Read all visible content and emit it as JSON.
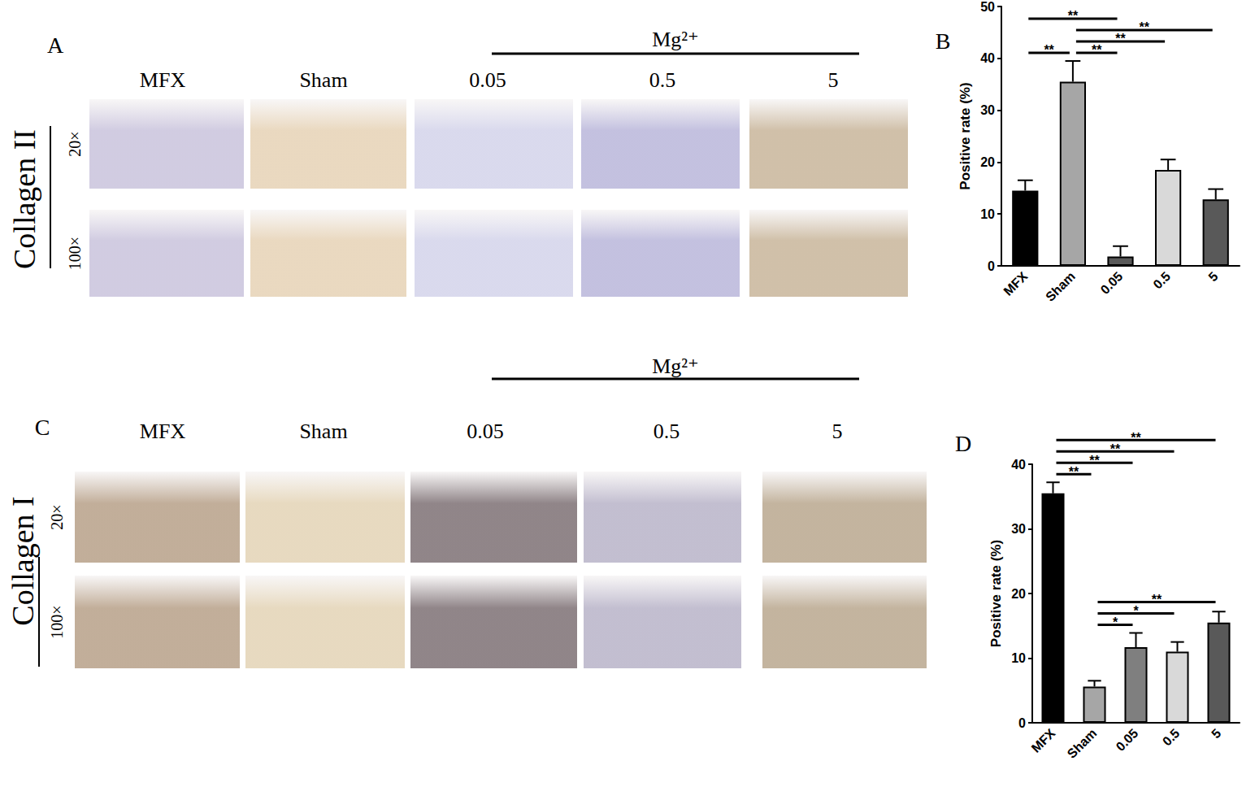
{
  "figure": {
    "panels": [
      {
        "panel": "A",
        "stain": "Collagen II",
        "columns": [
          "MFX",
          "Sham",
          "0.05",
          "0.5",
          "5"
        ],
        "rows": [
          "20×",
          "100×"
        ],
        "group": {
          "label": "Mg²⁺",
          "columns": [
            "0.05",
            "0.5",
            "5"
          ]
        }
      },
      {
        "panel": "C",
        "stain": "Collagen I",
        "columns": [
          "MFX",
          "Sham",
          "0.05",
          "0.5",
          "5"
        ],
        "rows": [
          "20×",
          "100×"
        ],
        "group": {
          "label": "Mg²⁺",
          "columns": [
            "0.05",
            "0.5",
            "5"
          ]
        }
      }
    ]
  },
  "chart_data": [
    {
      "panel": "B",
      "type": "bar",
      "ylabel": "Positive rate (%)",
      "categories": [
        "MFX",
        "Sham",
        "0.05",
        "0.5",
        "5"
      ],
      "values": [
        14.5,
        35.5,
        1.8,
        18.5,
        12.8
      ],
      "errors": [
        2.0,
        4.0,
        2.0,
        2.0,
        2.0
      ],
      "colors": [
        "#000000",
        "#a6a6a6",
        "#595959",
        "#d9d9d9",
        "#595959"
      ],
      "ylim": [
        0,
        50
      ],
      "yticks": [
        0,
        10,
        20,
        30,
        40,
        50
      ],
      "grid": false,
      "annotations": [
        {
          "from": "MFX",
          "to": "Sham",
          "label": "**"
        },
        {
          "from": "Sham",
          "to": "0.05",
          "label": "**"
        },
        {
          "from": "Sham",
          "to": "0.5",
          "label": "**"
        },
        {
          "from": "Sham",
          "to": "5",
          "label": "**"
        },
        {
          "from": "MFX",
          "to": "0.05",
          "label": "**"
        }
      ]
    },
    {
      "panel": "D",
      "type": "bar",
      "ylabel": "Positive rate (%)",
      "categories": [
        "MFX",
        "Sham",
        "0.05",
        "0.5",
        "5"
      ],
      "values": [
        35.5,
        5.6,
        11.7,
        11.0,
        15.5
      ],
      "errors": [
        1.7,
        0.9,
        2.2,
        1.5,
        1.7
      ],
      "colors": [
        "#000000",
        "#a6a6a6",
        "#7f7f7f",
        "#d9d9d9",
        "#595959"
      ],
      "ylim": [
        0,
        40
      ],
      "yticks": [
        0,
        10,
        20,
        30,
        40
      ],
      "grid": false,
      "annotations": [
        {
          "from": "Sham",
          "to": "0.05",
          "label": "*"
        },
        {
          "from": "Sham",
          "to": "0.5",
          "label": "*"
        },
        {
          "from": "Sham",
          "to": "5",
          "label": "**"
        },
        {
          "from": "MFX",
          "to": "Sham",
          "label": "**"
        },
        {
          "from": "MFX",
          "to": "0.05",
          "label": "**"
        },
        {
          "from": "MFX",
          "to": "0.5",
          "label": "**"
        },
        {
          "from": "MFX",
          "to": "5",
          "label": "**"
        }
      ]
    }
  ]
}
